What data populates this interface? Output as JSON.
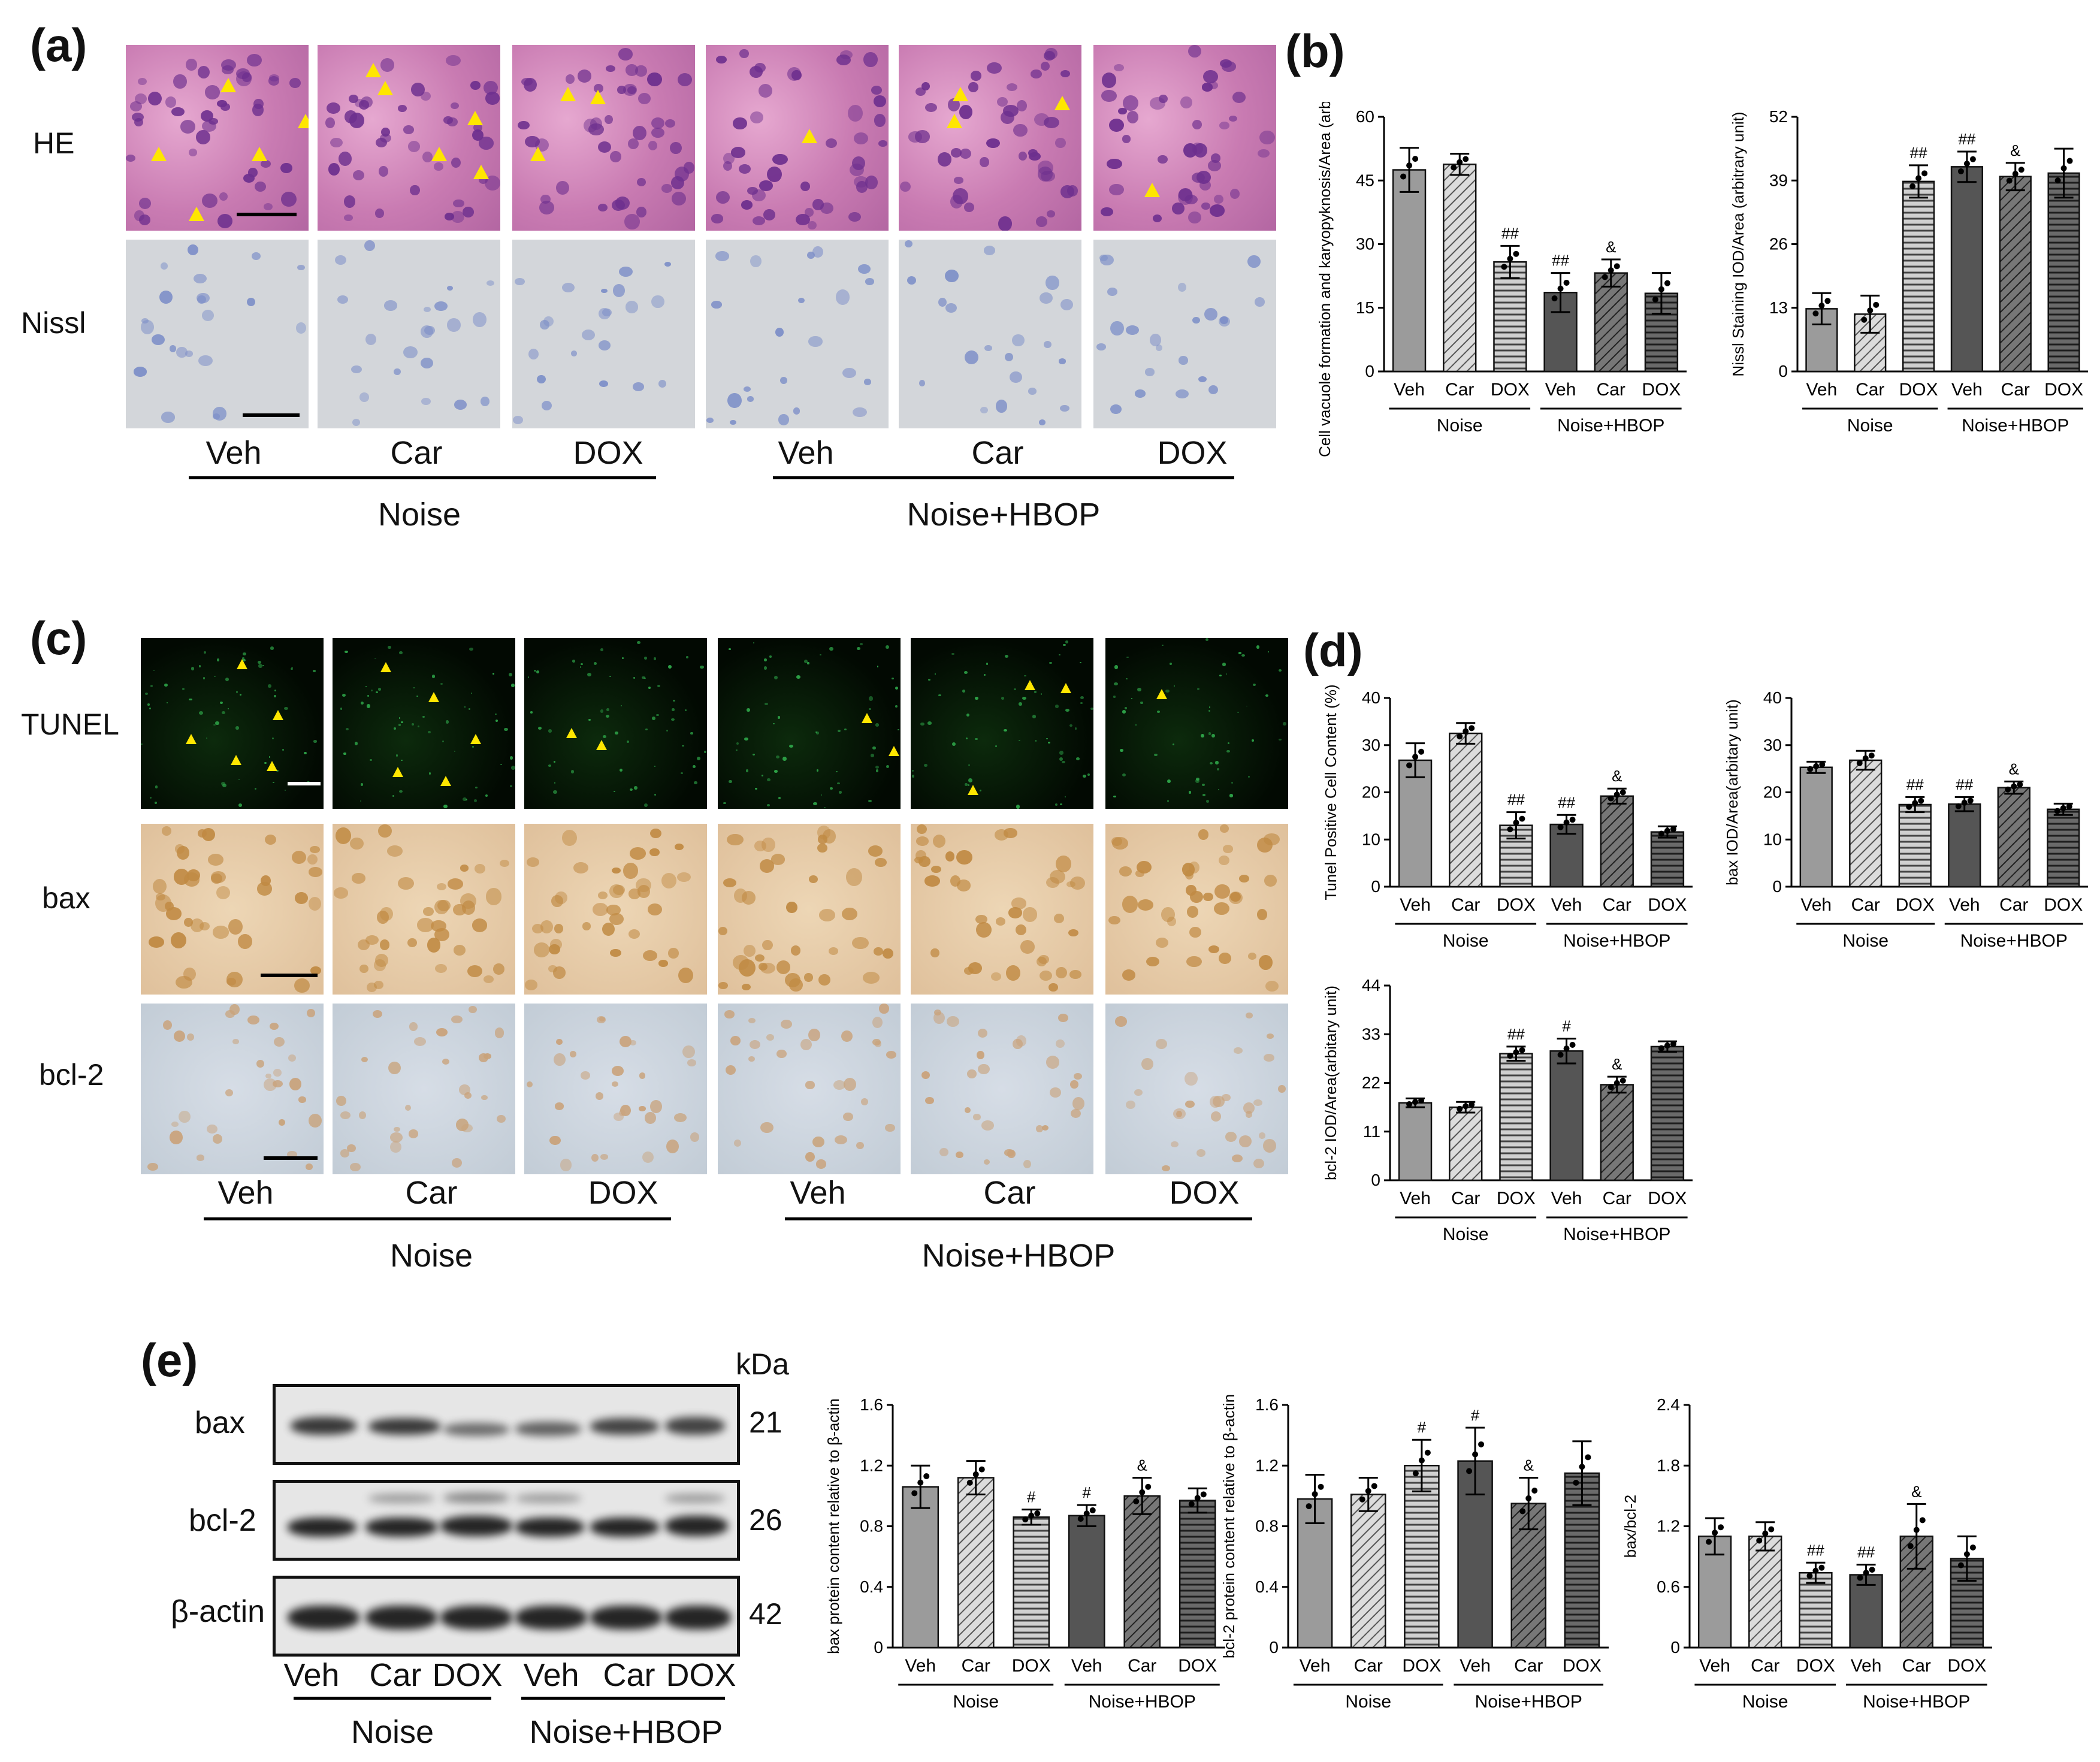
{
  "panel_letters": {
    "a": "(a)",
    "b": "(b)",
    "c": "(c)",
    "d": "(d)",
    "e": "(e)"
  },
  "groups": {
    "veh": "Veh",
    "car": "Car",
    "dox": "DOX",
    "noise": "Noise",
    "noise_hbop": "Noise+HBOP"
  },
  "row_labels": {
    "he": "HE",
    "nissl": "Nissl",
    "tunel": "TUNEL",
    "bax": "bax",
    "bcl2": "bcl-2"
  },
  "blot": {
    "kda": "kDa",
    "rows": [
      {
        "label": "bax",
        "kda": "21"
      },
      {
        "label": "bcl-2",
        "kda": "26"
      },
      {
        "label": "β-actin",
        "kda": "42"
      }
    ]
  },
  "chart_data": [
    {
      "id": "b1",
      "type": "bar",
      "categories": [
        "Veh",
        "Car",
        "DOX",
        "Veh",
        "Car",
        "DOX"
      ],
      "values": [
        47.5,
        48.8,
        25.8,
        18.6,
        23.2,
        18.4
      ],
      "errors": [
        5.2,
        2.5,
        3.8,
        4.6,
        3.2,
        4.8
      ],
      "annotations": [
        "",
        "",
        "##",
        "##",
        "&",
        ""
      ],
      "ylabel": "Cell vacuole formation and karyopyknosis/Area (arbitrary unit)",
      "ylim": [
        0,
        60
      ],
      "yticks": [
        0,
        15,
        30,
        45,
        60
      ]
    },
    {
      "id": "b2",
      "type": "bar",
      "categories": [
        "Veh",
        "Car",
        "DOX",
        "Veh",
        "Car",
        "DOX"
      ],
      "values": [
        12.8,
        11.7,
        38.8,
        41.8,
        39.8,
        40.5
      ],
      "errors": [
        3.2,
        3.8,
        3.3,
        3.1,
        2.8,
        5.0
      ],
      "annotations": [
        "",
        "",
        "##",
        "##",
        "&",
        ""
      ],
      "ylabel": "Nissl Staining IOD/Area (arbitrary unit)",
      "ylim": [
        0,
        52
      ],
      "yticks": [
        0,
        13,
        26,
        39,
        52
      ]
    },
    {
      "id": "d1",
      "type": "bar",
      "categories": [
        "Veh",
        "Car",
        "DOX",
        "Veh",
        "Car",
        "DOX"
      ],
      "values": [
        26.8,
        32.5,
        13.0,
        13.2,
        19.2,
        11.6
      ],
      "errors": [
        3.6,
        2.2,
        2.8,
        2.0,
        1.6,
        1.2
      ],
      "annotations": [
        "",
        "",
        "##",
        "##",
        "&",
        ""
      ],
      "ylabel": "Tunel Positive Cell Content (%)",
      "ylim": [
        0,
        40
      ],
      "yticks": [
        0,
        10,
        20,
        30,
        40
      ]
    },
    {
      "id": "d2",
      "type": "bar",
      "categories": [
        "Veh",
        "Car",
        "DOX",
        "Veh",
        "Car",
        "DOX"
      ],
      "values": [
        25.3,
        26.8,
        17.4,
        17.5,
        21.0,
        16.4
      ],
      "errors": [
        1.2,
        2.0,
        1.6,
        1.5,
        1.3,
        1.2
      ],
      "annotations": [
        "",
        "",
        "##",
        "##",
        "&",
        ""
      ],
      "ylabel": "bax IOD/Area(arbitary unit)",
      "ylim": [
        0,
        40
      ],
      "yticks": [
        0,
        10,
        20,
        30,
        40
      ]
    },
    {
      "id": "d3",
      "type": "bar",
      "categories": [
        "Veh",
        "Car",
        "DOX",
        "Veh",
        "Car",
        "DOX"
      ],
      "values": [
        17.5,
        16.5,
        28.6,
        29.2,
        21.6,
        30.2
      ],
      "errors": [
        1.0,
        1.2,
        1.6,
        2.8,
        1.8,
        1.2
      ],
      "annotations": [
        "",
        "",
        "##",
        "#",
        "&",
        ""
      ],
      "ylabel": "bcl-2 IOD/Area(arbitary unit)",
      "ylim": [
        0,
        44
      ],
      "yticks": [
        0,
        11,
        22,
        33,
        44
      ]
    },
    {
      "id": "e1",
      "type": "bar",
      "categories": [
        "Veh",
        "Car",
        "DOX",
        "Veh",
        "Car",
        "DOX"
      ],
      "values": [
        1.06,
        1.12,
        0.86,
        0.87,
        1.0,
        0.97
      ],
      "errors": [
        0.14,
        0.11,
        0.05,
        0.07,
        0.12,
        0.08
      ],
      "annotations": [
        "",
        "",
        "#",
        "#",
        "&",
        ""
      ],
      "ylabel": "bax protein content relative to β-actin",
      "ylim": [
        0,
        1.6
      ],
      "yticks": [
        0.0,
        0.4,
        0.8,
        1.2,
        1.6
      ]
    },
    {
      "id": "e2",
      "type": "bar",
      "categories": [
        "Veh",
        "Car",
        "DOX",
        "Veh",
        "Car",
        "DOX"
      ],
      "values": [
        0.98,
        1.01,
        1.2,
        1.23,
        0.95,
        1.15
      ],
      "errors": [
        0.16,
        0.11,
        0.17,
        0.22,
        0.17,
        0.21
      ],
      "annotations": [
        "",
        "",
        "#",
        "#",
        "&",
        ""
      ],
      "ylabel": "bcl-2 protein content relative to β-actin",
      "ylim": [
        0,
        1.6
      ],
      "yticks": [
        0.0,
        0.4,
        0.8,
        1.2,
        1.6
      ]
    },
    {
      "id": "e3",
      "type": "bar",
      "categories": [
        "Veh",
        "Car",
        "DOX",
        "Veh",
        "Car",
        "DOX"
      ],
      "values": [
        1.1,
        1.1,
        0.74,
        0.72,
        1.1,
        0.88
      ],
      "errors": [
        0.18,
        0.14,
        0.1,
        0.1,
        0.32,
        0.22
      ],
      "annotations": [
        "",
        "",
        "##",
        "##",
        "&",
        ""
      ],
      "ylabel": "bax/bcl-2",
      "ylim": [
        0,
        2.4
      ],
      "yticks": [
        0.0,
        0.6,
        1.2,
        1.8,
        2.4
      ]
    }
  ]
}
